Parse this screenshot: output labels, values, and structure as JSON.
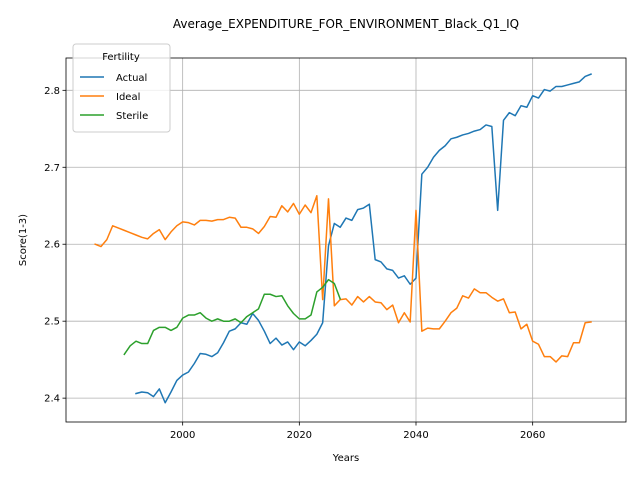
{
  "chart_data": {
    "type": "line",
    "title": "Average_EXPENDITURE_FOR_ENVIRONMENT_Black_Q1_IQ",
    "xlabel": "Years",
    "ylabel": "Score(1-3)",
    "xlim": [
      1980,
      2076
    ],
    "ylim": [
      2.369,
      2.842
    ],
    "x_ticks": [
      2000,
      2020,
      2040,
      2060
    ],
    "y_ticks": [
      2.4,
      2.5,
      2.6,
      2.7,
      2.8
    ],
    "x_tick_labels": [
      "2000",
      "2020",
      "2040",
      "2060"
    ],
    "y_tick_labels": [
      "2.4",
      "2.5",
      "2.6",
      "2.7",
      "2.8"
    ],
    "grid": true,
    "legend": {
      "title": "Fertility",
      "position": "upper-left",
      "entries": [
        "Actual",
        "Ideal",
        "Sterile"
      ]
    },
    "series": [
      {
        "name": "Actual",
        "color": "#1f77b4",
        "x": [
          1992,
          1993,
          1994,
          1995,
          1996,
          1997,
          1998,
          1999,
          2000,
          2001,
          2002,
          2003,
          2004,
          2005,
          2006,
          2007,
          2008,
          2009,
          2010,
          2011,
          2012,
          2013,
          2014,
          2015,
          2016,
          2017,
          2018,
          2019,
          2020,
          2021,
          2022,
          2023,
          2024,
          2025,
          2026,
          2027,
          2028,
          2029,
          2030,
          2031,
          2032,
          2033,
          2034,
          2035,
          2036,
          2037,
          2038,
          2039,
          2040,
          2041,
          2042,
          2043,
          2044,
          2045,
          2046,
          2047,
          2048,
          2049,
          2050,
          2051,
          2052,
          2053,
          2054,
          2055,
          2056,
          2057,
          2058,
          2059,
          2060,
          2061,
          2062,
          2063,
          2064,
          2065,
          2066,
          2067,
          2068,
          2069,
          2070
        ],
        "values": [
          2.406,
          2.408,
          2.407,
          2.402,
          2.412,
          2.394,
          2.408,
          2.423,
          2.43,
          2.434,
          2.445,
          2.458,
          2.457,
          2.454,
          2.459,
          2.472,
          2.487,
          2.49,
          2.498,
          2.496,
          2.51,
          2.501,
          2.487,
          2.471,
          2.478,
          2.469,
          2.473,
          2.463,
          2.473,
          2.468,
          2.475,
          2.483,
          2.498,
          2.598,
          2.627,
          2.622,
          2.634,
          2.631,
          2.645,
          2.647,
          2.652,
          2.58,
          2.577,
          2.568,
          2.566,
          2.556,
          2.559,
          2.548,
          2.556,
          2.691,
          2.7,
          2.713,
          2.722,
          2.728,
          2.737,
          2.739,
          2.742,
          2.744,
          2.747,
          2.749,
          2.755,
          2.753,
          2.644,
          2.761,
          2.771,
          2.767,
          2.78,
          2.778,
          2.793,
          2.79,
          2.801,
          2.799,
          2.805,
          2.805,
          2.807,
          2.809,
          2.811,
          2.818,
          2.821
        ]
      },
      {
        "name": "Ideal",
        "color": "#ff7f0e",
        "x": [
          1985,
          1986,
          1987,
          1988,
          1989,
          1990,
          1991,
          1992,
          1993,
          1994,
          1995,
          1996,
          1997,
          1998,
          1999,
          2000,
          2001,
          2002,
          2003,
          2004,
          2005,
          2006,
          2007,
          2008,
          2009,
          2010,
          2011,
          2012,
          2013,
          2014,
          2015,
          2016,
          2017,
          2018,
          2019,
          2020,
          2021,
          2022,
          2023,
          2024,
          2025,
          2026,
          2027,
          2028,
          2029,
          2030,
          2031,
          2032,
          2033,
          2034,
          2035,
          2036,
          2037,
          2038,
          2039,
          2040,
          2041,
          2042,
          2043,
          2044,
          2045,
          2046,
          2047,
          2048,
          2049,
          2050,
          2051,
          2052,
          2053,
          2054,
          2055,
          2056,
          2057,
          2058,
          2059,
          2060,
          2061,
          2062,
          2063,
          2064,
          2065,
          2066,
          2067,
          2068,
          2069,
          2070
        ],
        "values": [
          2.6,
          2.597,
          2.606,
          2.624,
          2.621,
          2.618,
          2.615,
          2.612,
          2.609,
          2.607,
          2.614,
          2.619,
          2.606,
          2.616,
          2.624,
          2.629,
          2.628,
          2.625,
          2.631,
          2.631,
          2.63,
          2.632,
          2.632,
          2.635,
          2.634,
          2.622,
          2.622,
          2.62,
          2.614,
          2.623,
          2.636,
          2.635,
          2.65,
          2.642,
          2.653,
          2.639,
          2.651,
          2.641,
          2.663,
          2.528,
          2.659,
          2.52,
          2.528,
          2.529,
          2.521,
          2.532,
          2.525,
          2.532,
          2.525,
          2.524,
          2.515,
          2.521,
          2.498,
          2.511,
          2.499,
          2.644,
          2.487,
          2.491,
          2.49,
          2.49,
          2.5,
          2.511,
          2.517,
          2.533,
          2.53,
          2.542,
          2.537,
          2.537,
          2.531,
          2.526,
          2.529,
          2.511,
          2.512,
          2.49,
          2.496,
          2.474,
          2.47,
          2.454,
          2.454,
          2.447,
          2.455,
          2.454,
          2.472,
          2.472,
          2.498,
          2.499
        ]
      },
      {
        "name": "Sterile",
        "color": "#2ca02c",
        "x": [
          1990,
          1991,
          1992,
          1993,
          1994,
          1995,
          1996,
          1997,
          1998,
          1999,
          2000,
          2001,
          2002,
          2003,
          2004,
          2005,
          2006,
          2007,
          2008,
          2009,
          2010,
          2011,
          2012,
          2013,
          2014,
          2015,
          2016,
          2017,
          2018,
          2019,
          2020,
          2021,
          2022,
          2023,
          2024,
          2025,
          2026,
          2027
        ],
        "values": [
          2.457,
          2.468,
          2.474,
          2.471,
          2.471,
          2.488,
          2.492,
          2.492,
          2.488,
          2.492,
          2.504,
          2.508,
          2.508,
          2.511,
          2.504,
          2.5,
          2.503,
          2.5,
          2.5,
          2.503,
          2.498,
          2.506,
          2.511,
          2.516,
          2.535,
          2.535,
          2.532,
          2.533,
          2.52,
          2.51,
          2.503,
          2.503,
          2.508,
          2.538,
          2.544,
          2.554,
          2.549,
          2.529
        ]
      }
    ]
  }
}
